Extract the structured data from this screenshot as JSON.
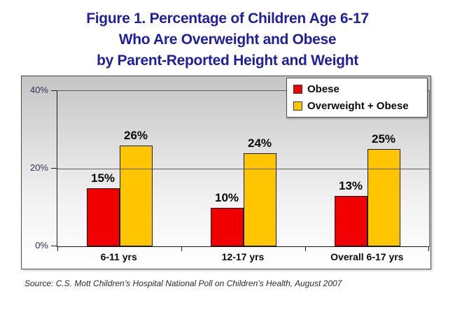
{
  "figure": {
    "title_lines": [
      "Figure 1. Percentage of Children Age 6-17",
      "Who Are Overweight and Obese",
      "by Parent-Reported Height and Weight"
    ],
    "source_note": "Source: C.S. Mott Children’s Hospital National Poll on Children’s Health, August 2007"
  },
  "colors": {
    "title_text": "#1f1f9e",
    "obese_red": "#f00000",
    "overweight_yellow": "#ffc600",
    "axis_label_text": "#32324e",
    "data_label_text": "#0a0a0a",
    "plot_border": "#5a5a5a"
  },
  "chart_data": {
    "type": "bar",
    "title": "Figure 1. Percentage of Children Age 6-17 Who Are Overweight and Obese by Parent-Reported Height and Weight",
    "categories": [
      "6-11 yrs",
      "12-17 yrs",
      "Overall 6-17 yrs"
    ],
    "series": [
      {
        "name": "Obese",
        "color": "#f00000",
        "values": [
          15,
          10,
          13
        ]
      },
      {
        "name": "Overweight + Obese",
        "color": "#ffc600",
        "values": [
          26,
          24,
          25
        ]
      }
    ],
    "value_suffix": "%",
    "xlabel": "",
    "ylabel": "",
    "ylim": [
      0,
      40
    ],
    "yticks": [
      {
        "value": 0,
        "label": "0%"
      },
      {
        "value": 20,
        "label": "20%"
      },
      {
        "value": 40,
        "label": "40%"
      }
    ],
    "grid": true,
    "legend_position": "top-right",
    "data_labels": true,
    "source": "Source: C.S. Mott Children’s Hospital National Poll on Children’s Health, August 2007"
  }
}
